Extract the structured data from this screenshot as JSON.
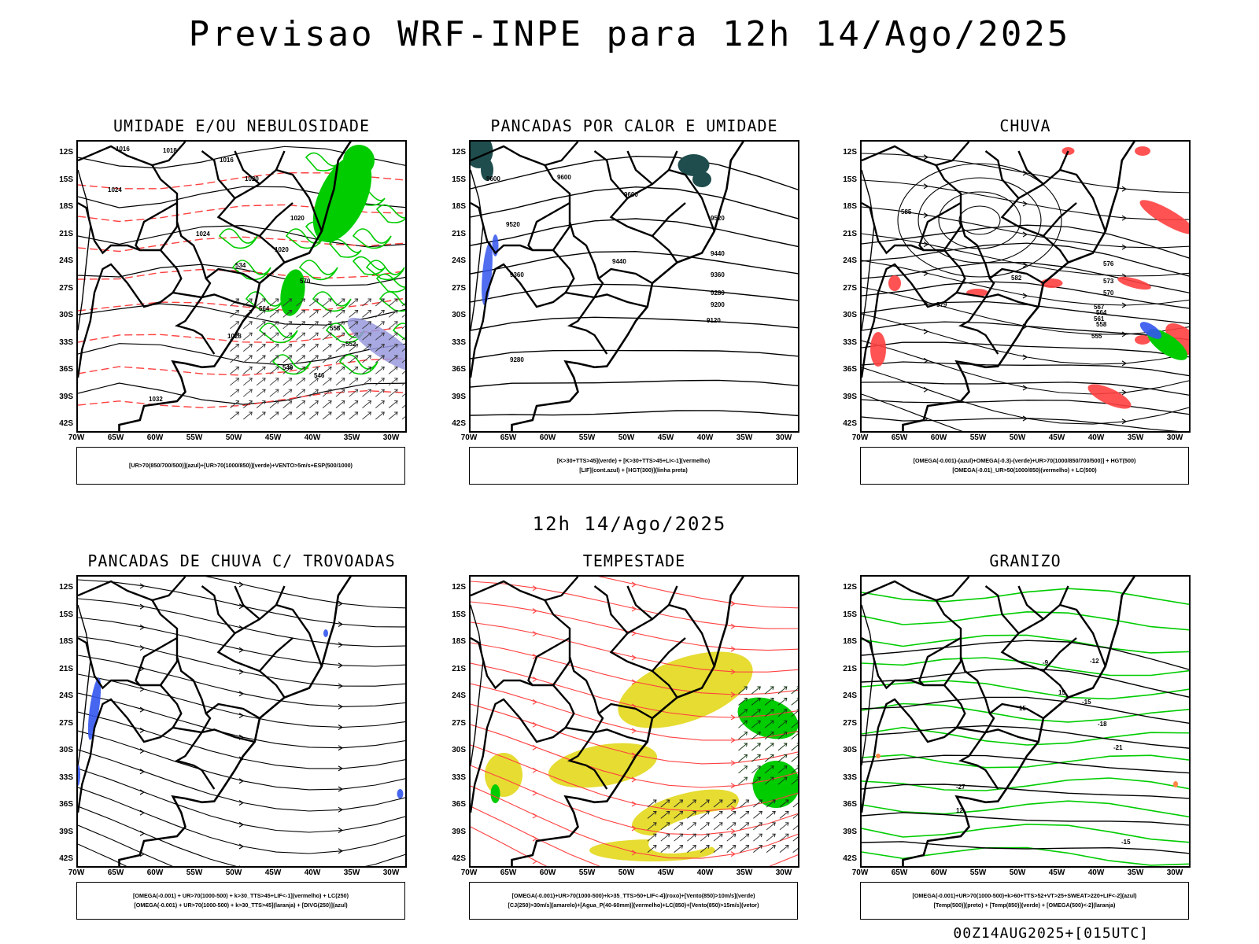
{
  "title": "Previsao WRF-INPE  para 12h 14/Ago/2025",
  "subtitle": "12h 14/Ago/2025",
  "footer": "00Z14AUG2025+[015UTC]",
  "axes": {
    "lat_ticks": [
      "12S",
      "15S",
      "18S",
      "21S",
      "24S",
      "27S",
      "30S",
      "33S",
      "36S",
      "39S",
      "42S"
    ],
    "lon_ticks": [
      "70W",
      "65W",
      "60W",
      "55W",
      "50W",
      "45W",
      "40W",
      "35W",
      "30W"
    ]
  },
  "panels": [
    {
      "id": "umidade",
      "title": "UMIDADE E/OU NEBULOSIDADE",
      "legend": [
        "[UR>70(850/700/500)](azul)+[UR>70(1000/850)](verde)+VENTO>5m/s+ESP(500/1000)"
      ],
      "contour_labels": [
        "1016",
        "1018",
        "1016",
        "1020",
        "1024",
        "1024",
        "1020",
        "1020",
        "1028",
        "1032",
        "570",
        "564",
        "558",
        "552",
        "546",
        "540",
        "534"
      ]
    },
    {
      "id": "pancadas-calor",
      "title": "PANCADAS POR CALOR E UMIDADE",
      "legend": [
        "[K>30+TTS>45](verde) + [K>30+TTS>45+LI<-1](vermelho)",
        "[LIF](cont.azul) + [HGT(300)](linha preta)"
      ],
      "contour_labels": [
        "9600",
        "9600",
        "9600",
        "9520",
        "9520",
        "9440",
        "9440",
        "9360",
        "9360",
        "9280",
        "9280",
        "9200",
        "9120"
      ]
    },
    {
      "id": "chuva",
      "title": "CHUVA",
      "legend": [
        "[OMEGA(-0.001)-(azul)+OMEGA(-0.3)-(verde)+UR>70(1000/850/700/500)] + HGT(500)",
        "[OMEGA(-0.01)_UR>50(1000/850)(vermelho) + LC(500)"
      ],
      "contour_labels": [
        "585",
        "582",
        "579",
        "576",
        "573",
        "570",
        "567",
        "564",
        "561",
        "558",
        "555"
      ]
    },
    {
      "id": "pancadas-trovoadas",
      "title": "PANCADAS DE CHUVA C/ TROVOADAS",
      "legend": [
        "[OMEGA(-0.001) + UR>70(1000-500) + k>30_TTS>45+LIF<-1](vermelho) + LC(250)",
        "[OMEGA(-0.001) + UR>70(1000-500) + k>30_TTS>45](laranja) + [DIVG(250)](azul)"
      ],
      "contour_labels": []
    },
    {
      "id": "tempestade",
      "title": "TEMPESTADE",
      "legend": [
        "[OMEGA(-0.001)+UR>70(1000-500)+k>35_TTS>50+LIF<-4](roxo)+[Vento(850)>10m/s](verde)",
        "[CJ(250)>30m/s](amarelo)+[Agua_P(40-60mm)](vermelho)+LC(850)+[Vento(850)>15m/s](vetor)"
      ],
      "contour_labels": []
    },
    {
      "id": "granizo",
      "title": "GRANIZO",
      "legend": [
        "[OMEGA(-0.001)+UR>70(1000-500)+k>60+TTS>52+VT>25+SWEAT>220+LIF<-2](azul)",
        "[Temp(500)](preto) + [Temp(850)](verde) + [OMEGA(500)<-2](laranja)"
      ],
      "contour_labels": [
        "-9",
        "-12",
        "-15",
        "-18",
        "-21",
        "-27",
        "-15",
        "12",
        "15",
        "15"
      ]
    }
  ],
  "colors": {
    "green": "#00cc00",
    "red": "#ff4040",
    "blue": "#3355ee",
    "yellow": "#e6dc32",
    "darkteal": "#1f4d4d",
    "lilac": "#9999dd",
    "black": "#000000"
  }
}
